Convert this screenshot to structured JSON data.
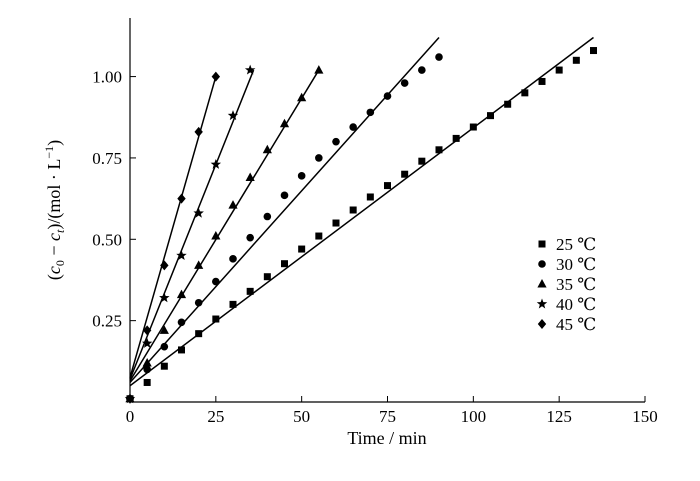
{
  "chart_data": {
    "type": "scatter",
    "xlabel": "Time / min",
    "ylabel": "(c0 − ct)/(mol·L⁻¹)",
    "xlim": [
      0,
      150
    ],
    "ylim": [
      0,
      1.18
    ],
    "x_ticks": [
      "0",
      "25",
      "50",
      "75",
      "100",
      "125",
      "150"
    ],
    "y_ticks": [
      "0.25",
      "0.50",
      "0.75",
      "1.00"
    ],
    "grid": false,
    "legend_position": "right",
    "series": [
      {
        "name": "25 ℃",
        "marker": "square",
        "x": [
          0,
          5,
          10,
          15,
          20,
          25,
          30,
          35,
          40,
          45,
          50,
          55,
          60,
          65,
          70,
          75,
          80,
          85,
          90,
          95,
          100,
          105,
          110,
          115,
          120,
          125,
          130,
          135
        ],
        "y": [
          0.01,
          0.06,
          0.11,
          0.16,
          0.21,
          0.255,
          0.3,
          0.34,
          0.385,
          0.425,
          0.47,
          0.51,
          0.55,
          0.59,
          0.63,
          0.665,
          0.7,
          0.74,
          0.775,
          0.81,
          0.845,
          0.88,
          0.915,
          0.95,
          0.985,
          1.02,
          1.05,
          1.08
        ],
        "fit": [
          [
            0,
            0.05
          ],
          [
            135,
            1.12
          ]
        ]
      },
      {
        "name": "30 ℃",
        "marker": "circle",
        "x": [
          0,
          5,
          10,
          15,
          20,
          25,
          30,
          35,
          40,
          45,
          50,
          55,
          60,
          65,
          70,
          75,
          80,
          85,
          90
        ],
        "y": [
          0.01,
          0.1,
          0.17,
          0.245,
          0.305,
          0.37,
          0.44,
          0.505,
          0.57,
          0.635,
          0.695,
          0.75,
          0.8,
          0.845,
          0.89,
          0.94,
          0.98,
          1.02,
          1.06
        ],
        "fit": [
          [
            0,
            0.06
          ],
          [
            90,
            1.12
          ]
        ]
      },
      {
        "name": "35 ℃",
        "marker": "triangle",
        "x": [
          0,
          5,
          10,
          15,
          20,
          25,
          30,
          35,
          40,
          45,
          50,
          55
        ],
        "y": [
          0.01,
          0.12,
          0.22,
          0.33,
          0.42,
          0.51,
          0.605,
          0.69,
          0.775,
          0.855,
          0.935,
          1.02
        ],
        "fit": [
          [
            0,
            0.065
          ],
          [
            55,
            1.02
          ]
        ]
      },
      {
        "name": "40 ℃",
        "marker": "star",
        "x": [
          0,
          5,
          10,
          15,
          20,
          25,
          30,
          35
        ],
        "y": [
          0.01,
          0.18,
          0.32,
          0.45,
          0.58,
          0.73,
          0.88,
          1.02
        ],
        "fit": [
          [
            0,
            0.07
          ],
          [
            36,
            1.02
          ]
        ]
      },
      {
        "name": "45 ℃",
        "marker": "diamond",
        "x": [
          0,
          5,
          10,
          15,
          20,
          25
        ],
        "y": [
          0.01,
          0.22,
          0.42,
          0.625,
          0.83,
          1.0
        ],
        "fit": [
          [
            0,
            0.075
          ],
          [
            25,
            1.0
          ]
        ]
      }
    ]
  }
}
